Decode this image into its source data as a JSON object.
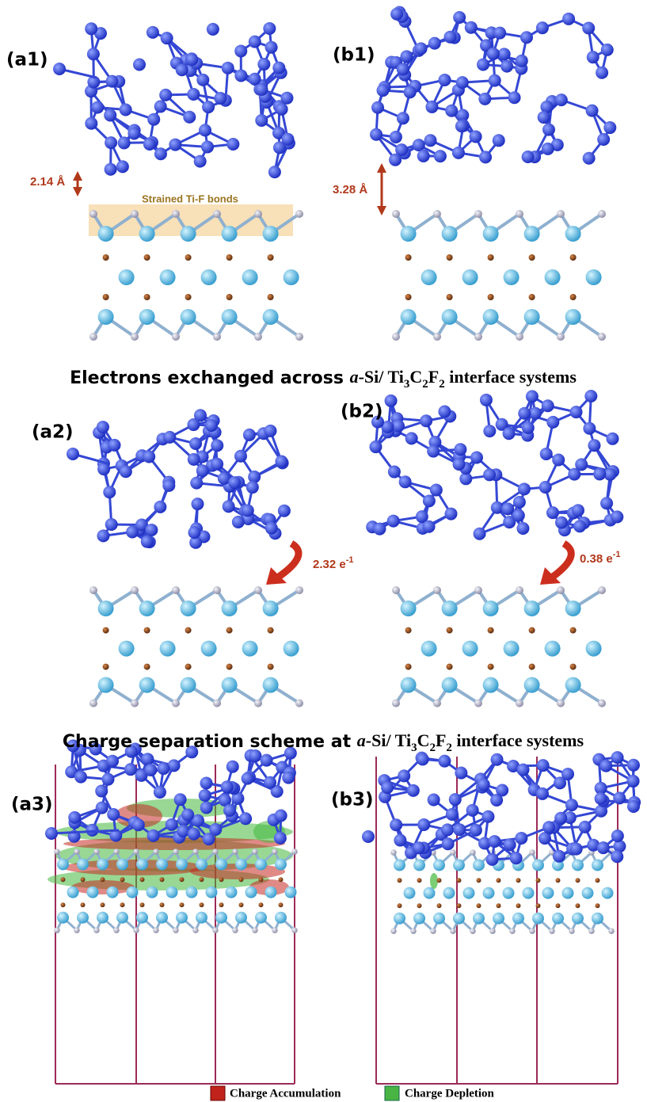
{
  "panel_labels": [
    "(a1)",
    "(b1)",
    "(a2)",
    "(b2)",
    "(a3)",
    "(b3)"
  ],
  "distances": [
    "2.14 Å",
    "3.28 Å"
  ],
  "annotation": "Strained Ti-F bonds",
  "headings": [
    [
      {
        "text": "Electrons exchanged across ",
        "style": "sans"
      },
      {
        "text": "a",
        "style": "italic"
      },
      {
        "text": "-Si/ Ti",
        "style": "serif"
      },
      {
        "text": "3",
        "style": "sub"
      },
      {
        "text": "C",
        "style": "serif"
      },
      {
        "text": "2",
        "style": "sub"
      },
      {
        "text": "F",
        "style": "serif"
      },
      {
        "text": "2",
        "style": "sub"
      },
      {
        "text": " interface systems",
        "style": "serif"
      }
    ],
    [
      {
        "text": "Charge separation scheme at ",
        "style": "sans"
      },
      {
        "text": "a",
        "style": "italic"
      },
      {
        "text": "-Si/ Ti",
        "style": "serif"
      },
      {
        "text": "3",
        "style": "sub"
      },
      {
        "text": "C",
        "style": "serif"
      },
      {
        "text": "2",
        "style": "sub"
      },
      {
        "text": "F",
        "style": "serif"
      },
      {
        "text": "2",
        "style": "sub"
      },
      {
        "text": " interface systems",
        "style": "serif"
      }
    ]
  ],
  "transfers": [
    {
      "text": "2.32 e",
      "sup": "-1"
    },
    {
      "text": "0.38 e",
      "sup": "-1"
    }
  ],
  "legend": [
    "Charge Accumulation",
    "Charge Depletion"
  ]
}
